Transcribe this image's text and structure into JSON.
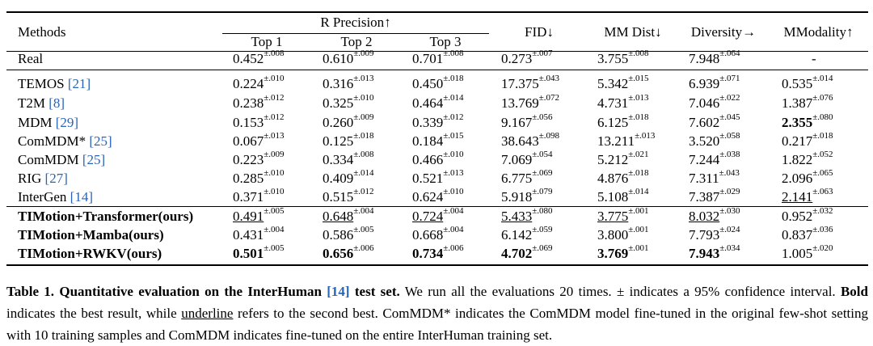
{
  "table": {
    "header": {
      "methods": "Methods",
      "r_precision": "R Precision↑",
      "top1": "Top 1",
      "top2": "Top 2",
      "top3": "Top 3",
      "fid": "FID↓",
      "mm_dist": "MM Dist↓",
      "diversity": "Diversity→",
      "mmodality": "MModality↑"
    },
    "rows": [
      {
        "method": "Real",
        "cite": "",
        "cells": [
          [
            "0.452",
            "±.008"
          ],
          [
            "0.610",
            "±.009"
          ],
          [
            "0.701",
            "±.008"
          ],
          [
            "0.273",
            "±.007"
          ],
          [
            "3.755",
            "±.008"
          ],
          [
            "7.948",
            "±.064"
          ],
          [
            "-",
            ""
          ]
        ]
      },
      {
        "method": "TEMOS ",
        "cite": "[21]",
        "cells": [
          [
            "0.224",
            "±.010"
          ],
          [
            "0.316",
            "±.013"
          ],
          [
            "0.450",
            "±.018"
          ],
          [
            "17.375",
            "±.043"
          ],
          [
            "5.342",
            "±.015"
          ],
          [
            "6.939",
            "±.071"
          ],
          [
            "0.535",
            "±.014"
          ]
        ]
      },
      {
        "method": "T2M ",
        "cite": "[8]",
        "cells": [
          [
            "0.238",
            "±.012"
          ],
          [
            "0.325",
            "±.010"
          ],
          [
            "0.464",
            "±.014"
          ],
          [
            "13.769",
            "±.072"
          ],
          [
            "4.731",
            "±.013"
          ],
          [
            "7.046",
            "±.022"
          ],
          [
            "1.387",
            "±.076"
          ]
        ]
      },
      {
        "method": "MDM ",
        "cite": "[29]",
        "cells": [
          [
            "0.153",
            "±.012"
          ],
          [
            "0.260",
            "±.009"
          ],
          [
            "0.339",
            "±.012"
          ],
          [
            "9.167",
            "±.056"
          ],
          [
            "6.125",
            "±.018"
          ],
          [
            "7.602",
            "±.045"
          ],
          [
            "2.355",
            "±.080"
          ]
        ]
      },
      {
        "method": "ComMDM* ",
        "cite": "[25]",
        "cells": [
          [
            "0.067",
            "±.013"
          ],
          [
            "0.125",
            "±.018"
          ],
          [
            "0.184",
            "±.015"
          ],
          [
            "38.643",
            "±.098"
          ],
          [
            "13.211",
            "±.013"
          ],
          [
            "3.520",
            "±.058"
          ],
          [
            "0.217",
            "±.018"
          ]
        ]
      },
      {
        "method": "ComMDM ",
        "cite": "[25]",
        "cells": [
          [
            "0.223",
            "±.009"
          ],
          [
            "0.334",
            "±.008"
          ],
          [
            "0.466",
            "±.010"
          ],
          [
            "7.069",
            "±.054"
          ],
          [
            "5.212",
            "±.021"
          ],
          [
            "7.244",
            "±.038"
          ],
          [
            "1.822",
            "±.052"
          ]
        ]
      },
      {
        "method": "RIG ",
        "cite": "[27]",
        "cells": [
          [
            "0.285",
            "±.010"
          ],
          [
            "0.409",
            "±.014"
          ],
          [
            "0.521",
            "±.013"
          ],
          [
            "6.775",
            "±.069"
          ],
          [
            "4.876",
            "±.018"
          ],
          [
            "7.311",
            "±.043"
          ],
          [
            "2.096",
            "±.065"
          ]
        ]
      },
      {
        "method": "InterGen ",
        "cite": "[14]",
        "cells": [
          [
            "0.371",
            "±.010"
          ],
          [
            "0.515",
            "±.012"
          ],
          [
            "0.624",
            "±.010"
          ],
          [
            "5.918",
            "±.079"
          ],
          [
            "5.108",
            "±.014"
          ],
          [
            "7.387",
            "±.029"
          ],
          [
            "2.141",
            "±.063"
          ]
        ]
      },
      {
        "method": "TIMotion+Transformer(ours)",
        "cite": "",
        "cells": [
          [
            "0.491",
            "±.005"
          ],
          [
            "0.648",
            "±.004"
          ],
          [
            "0.724",
            "±.004"
          ],
          [
            "5.433",
            "±.080"
          ],
          [
            "3.775",
            "±.001"
          ],
          [
            "8.032",
            "±.030"
          ],
          [
            "0.952",
            "±.032"
          ]
        ]
      },
      {
        "method": "TIMotion+Mamba(ours)",
        "cite": "",
        "cells": [
          [
            "0.431",
            "±.004"
          ],
          [
            "0.586",
            "±.005"
          ],
          [
            "0.668",
            "±.004"
          ],
          [
            "6.142",
            "±.059"
          ],
          [
            "3.800",
            "±.001"
          ],
          [
            "7.793",
            "±.024"
          ],
          [
            "0.837",
            "±.036"
          ]
        ]
      },
      {
        "method": "TIMotion+RWKV(ours)",
        "cite": "",
        "cells": [
          [
            "0.501",
            "±.005"
          ],
          [
            "0.656",
            "±.006"
          ],
          [
            "0.734",
            "±.006"
          ],
          [
            "4.702",
            "±.069"
          ],
          [
            "3.769",
            "±.001"
          ],
          [
            "7.943",
            "±.034"
          ],
          [
            "1.005",
            "±.020"
          ]
        ]
      }
    ]
  },
  "caption": {
    "label": "Table 1. ",
    "title": "Quantitative evaluation on the InterHuman ",
    "title_cite": "[14]",
    "title_end": " test set.",
    "t1": " We run all the evaluations 20 times. ± indicates a 95% confidence interval. ",
    "bold_word": "Bold",
    "t2": " indicates the best result, while ",
    "underline_word": "underline",
    "t3": " refers to the second best. ComMDM* indicates the ComMDM model fine-tuned in the original few-shot setting with 10 training samples and ComMDM indicates fine-tuned on the entire InterHuman training set."
  }
}
